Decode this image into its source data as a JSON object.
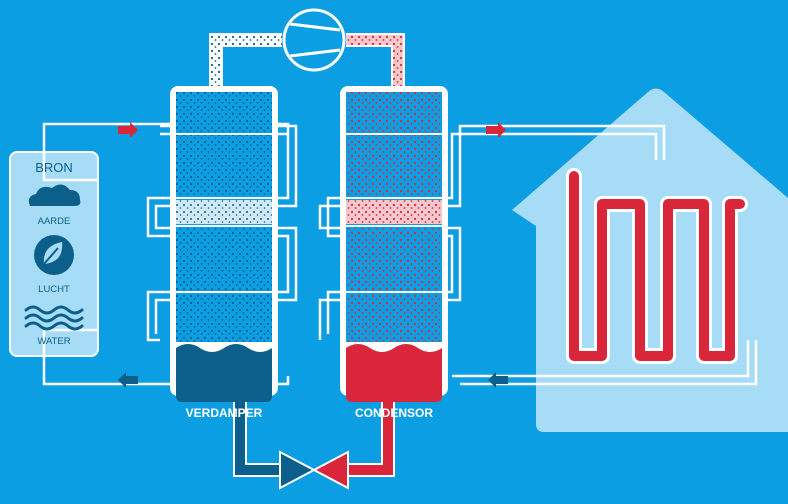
{
  "source": {
    "title": "BRON",
    "items": [
      {
        "label": "AARDE",
        "icon": "cloud-icon"
      },
      {
        "label": "LUCHT",
        "icon": "leaf-icon"
      },
      {
        "label": "WATER",
        "icon": "waves-icon"
      }
    ]
  },
  "components": {
    "evaporator": "VERDAMPER",
    "condenser": "CONDENSOR"
  },
  "colors": {
    "background": "#0c9ee3",
    "cold": "#0b5f8a",
    "hot": "#d9263a",
    "light": "#9fd6f5",
    "pipe": "#ffffff",
    "house": "#a7dcf6"
  }
}
